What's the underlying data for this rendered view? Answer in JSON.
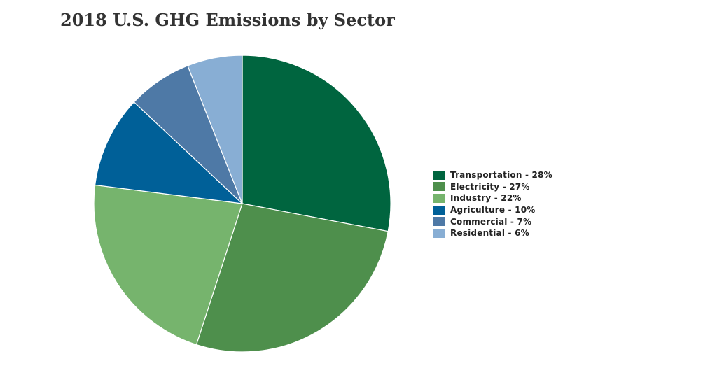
{
  "chart_data": {
    "type": "pie",
    "title": "2018 U.S. GHG Emissions by Sector",
    "slices": [
      {
        "label": "Transportation - 28%",
        "value": 28,
        "color": "#00653f"
      },
      {
        "label": "Electricity - 27%",
        "value": 27,
        "color": "#4e8f4c"
      },
      {
        "label": "Industry - 22%",
        "value": 22,
        "color": "#76b46d"
      },
      {
        "label": "Agriculture - 10%",
        "value": 10,
        "color": "#006098"
      },
      {
        "label": "Commercial - 7%",
        "value": 7,
        "color": "#4e79a6"
      },
      {
        "label": "Residential - 6%",
        "value": 6,
        "color": "#88aed4"
      }
    ],
    "legend": "right"
  }
}
